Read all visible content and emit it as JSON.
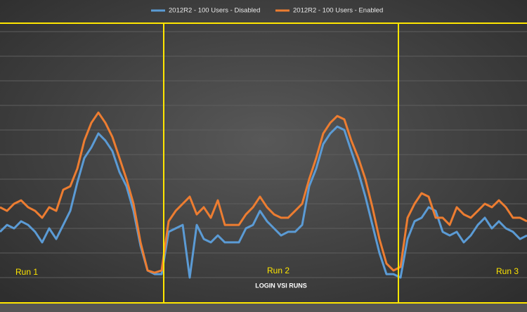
{
  "chart_data": {
    "type": "line",
    "x_label": "LOGIN VSI RUNS",
    "annotations": [
      "Run 1",
      "Run 2",
      "Run 3"
    ],
    "ylim": [
      0,
      12
    ],
    "yticks": [
      1,
      2,
      3,
      4,
      5,
      6,
      7,
      8,
      9,
      10,
      11
    ],
    "grid": true,
    "legend": "top",
    "series": [
      {
        "name": "2012R2 - 100 Users - Disabled",
        "color": "#5b9bd5",
        "values": [
          2.86,
          3.14,
          3.0,
          3.29,
          3.14,
          2.86,
          2.43,
          3.0,
          2.57,
          3.14,
          3.71,
          4.86,
          5.86,
          6.29,
          6.86,
          6.57,
          6.14,
          5.29,
          4.71,
          3.71,
          2.29,
          1.29,
          1.14,
          1.14,
          2.86,
          3.0,
          3.14,
          1.0,
          3.14,
          2.57,
          2.43,
          2.71,
          2.43,
          2.43,
          2.43,
          3.0,
          3.14,
          3.71,
          3.29,
          3.0,
          2.71,
          2.86,
          2.86,
          3.14,
          4.71,
          5.43,
          6.43,
          6.86,
          7.14,
          7.0,
          6.14,
          5.29,
          4.29,
          3.14,
          2.0,
          1.14,
          1.14,
          1.0,
          2.57,
          3.29,
          3.43,
          3.86,
          3.71,
          2.86,
          2.71,
          2.86,
          2.43,
          2.71,
          3.14,
          3.43,
          3.0,
          3.29,
          3.0,
          2.86,
          2.57,
          2.71
        ]
      },
      {
        "name": "2012R2 - 100 Users - Enabled",
        "color": "#ed7d31",
        "values": [
          3.86,
          3.71,
          4.0,
          4.14,
          3.86,
          3.71,
          3.43,
          3.86,
          3.71,
          4.57,
          4.71,
          5.43,
          6.57,
          7.29,
          7.71,
          7.29,
          6.71,
          5.86,
          5.0,
          4.0,
          2.43,
          1.29,
          1.2,
          1.29,
          3.29,
          3.71,
          4.0,
          4.29,
          3.57,
          3.86,
          3.43,
          4.14,
          3.14,
          3.14,
          3.14,
          3.57,
          3.86,
          4.29,
          3.86,
          3.57,
          3.43,
          3.43,
          3.71,
          4.0,
          5.0,
          5.86,
          6.86,
          7.29,
          7.57,
          7.43,
          6.57,
          5.86,
          5.0,
          3.86,
          2.57,
          1.57,
          1.29,
          1.43,
          3.43,
          4.0,
          4.43,
          4.29,
          3.43,
          3.43,
          3.14,
          3.86,
          3.57,
          3.43,
          3.71,
          4.0,
          3.86,
          4.14,
          3.86,
          3.43,
          3.43,
          3.29
        ]
      }
    ]
  }
}
